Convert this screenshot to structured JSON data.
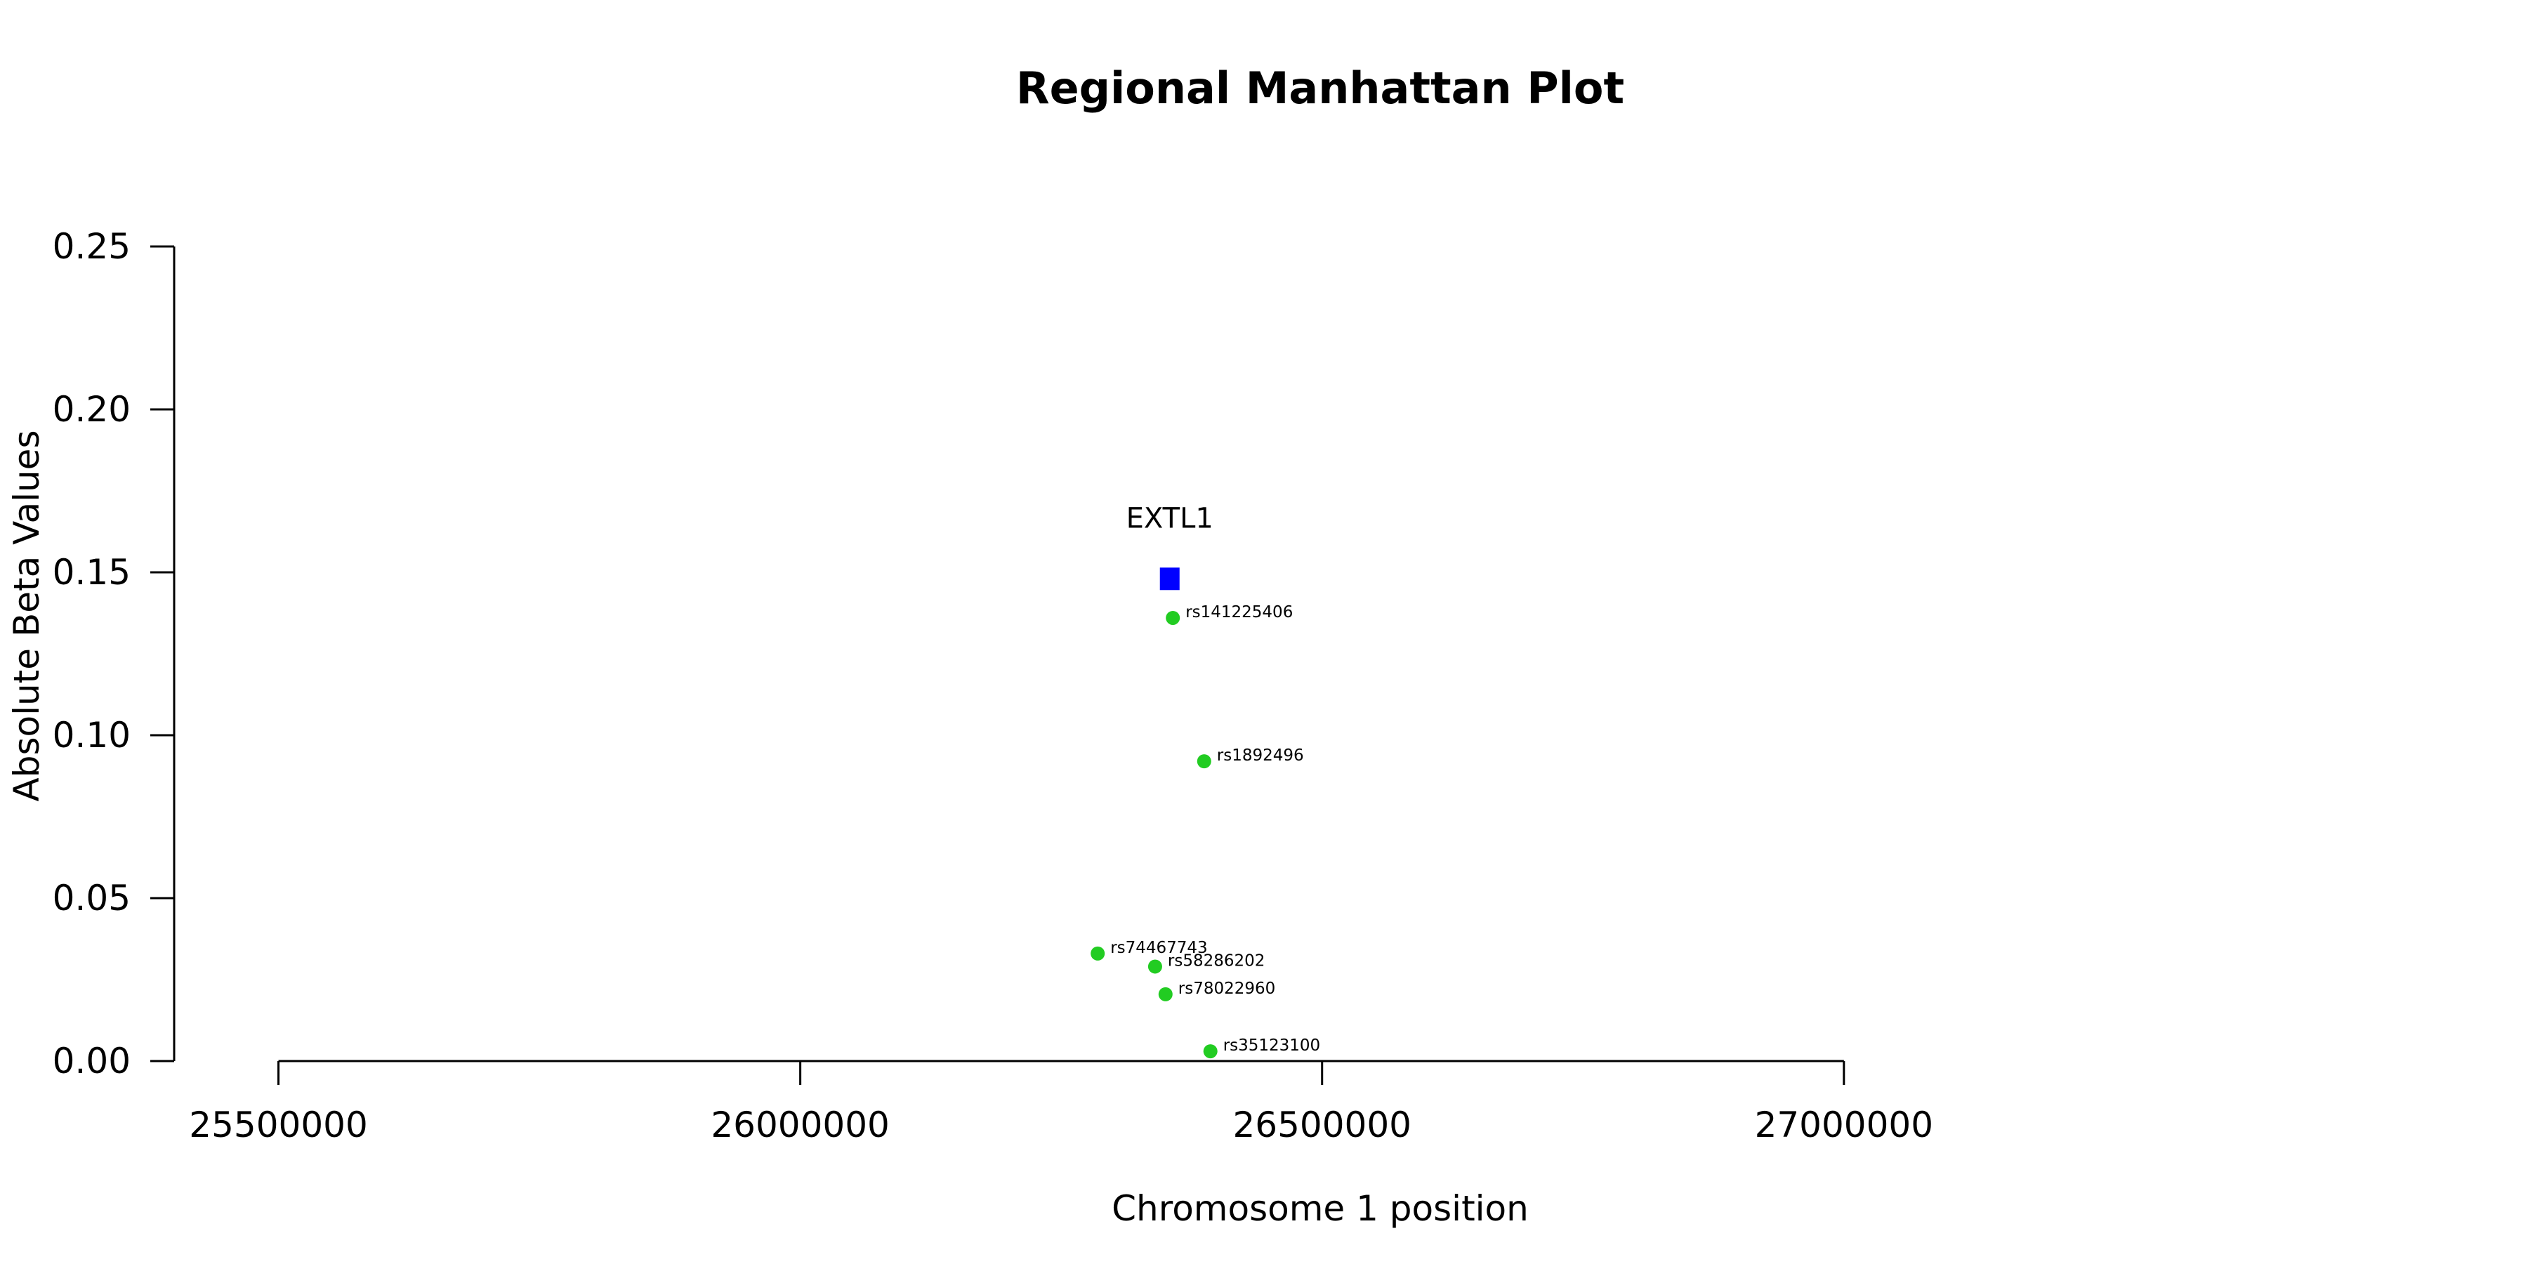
{
  "chart_data": {
    "type": "scatter",
    "title": "Regional Manhattan Plot",
    "xlabel": "Chromosome 1 position",
    "ylabel": "Absolute Beta Values",
    "xlim": [
      25285000,
      27385000
    ],
    "ylim": [
      0,
      0.25
    ],
    "x_ticks": [
      25500000,
      26000000,
      26500000,
      27000000
    ],
    "x_tick_labels": [
      "25500000",
      "26000000",
      "26500000",
      "27000000"
    ],
    "y_ticks": [
      0,
      0.05,
      0.1,
      0.15,
      0.2,
      0.25
    ],
    "y_tick_labels": [
      "0.00",
      "0.05",
      "0.10",
      "0.15",
      "0.20",
      "0.25"
    ],
    "grid": false,
    "genes": [
      {
        "name": "EXTL1",
        "x": 26354000,
        "y": 0.148,
        "marker": "square",
        "color": "#0000ff"
      }
    ],
    "series": [
      {
        "marker": "circle",
        "color": "#22cc22",
        "points": [
          {
            "label": "rs141225406",
            "x": 26357000,
            "y": 0.136
          },
          {
            "label": "rs1892496",
            "x": 26387000,
            "y": 0.092
          },
          {
            "label": "rs74467743",
            "x": 26285000,
            "y": 0.033
          },
          {
            "label": "rs58286202",
            "x": 26340000,
            "y": 0.029
          },
          {
            "label": "rs78022960",
            "x": 26350000,
            "y": 0.0205
          },
          {
            "label": "rs35123100",
            "x": 26393000,
            "y": 0.003
          }
        ]
      }
    ]
  }
}
